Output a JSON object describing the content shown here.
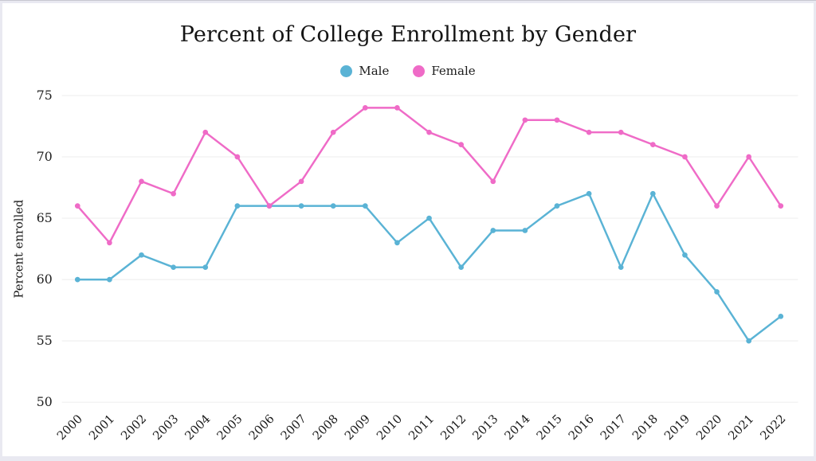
{
  "page": {
    "background_color": "#ffffff",
    "frame_color": "#e9e9f1"
  },
  "chart_data": {
    "type": "line",
    "title": "Percent of College Enrollment by Gender",
    "xlabel": "",
    "ylabel": "Percent enrolled",
    "x": [
      "2000",
      "2001",
      "2002",
      "2003",
      "2004",
      "2005",
      "2006",
      "2007",
      "2008",
      "2009",
      "2010",
      "2011",
      "2012",
      "2013",
      "2014",
      "2015",
      "2016",
      "2017",
      "2018",
      "2019",
      "2020",
      "2021",
      "2022"
    ],
    "series": [
      {
        "name": "Male",
        "color": "#5ab3d5",
        "values": [
          60,
          60,
          62,
          61,
          61,
          66,
          66,
          66,
          66,
          66,
          63,
          65,
          61,
          64,
          64,
          66,
          67,
          61,
          67,
          62,
          59,
          55,
          57
        ]
      },
      {
        "name": "Female",
        "color": "#ef6bc7",
        "values": [
          66,
          63,
          68,
          67,
          72,
          70,
          66,
          68,
          72,
          74,
          74,
          72,
          71,
          68,
          73,
          73,
          72,
          72,
          71,
          70,
          66,
          70,
          66
        ]
      }
    ],
    "ylim": [
      50,
      75
    ],
    "yticks": [
      50,
      55,
      60,
      65,
      70,
      75
    ],
    "grid": "horizontal",
    "legend_position": "top-center",
    "marker": "circle"
  }
}
